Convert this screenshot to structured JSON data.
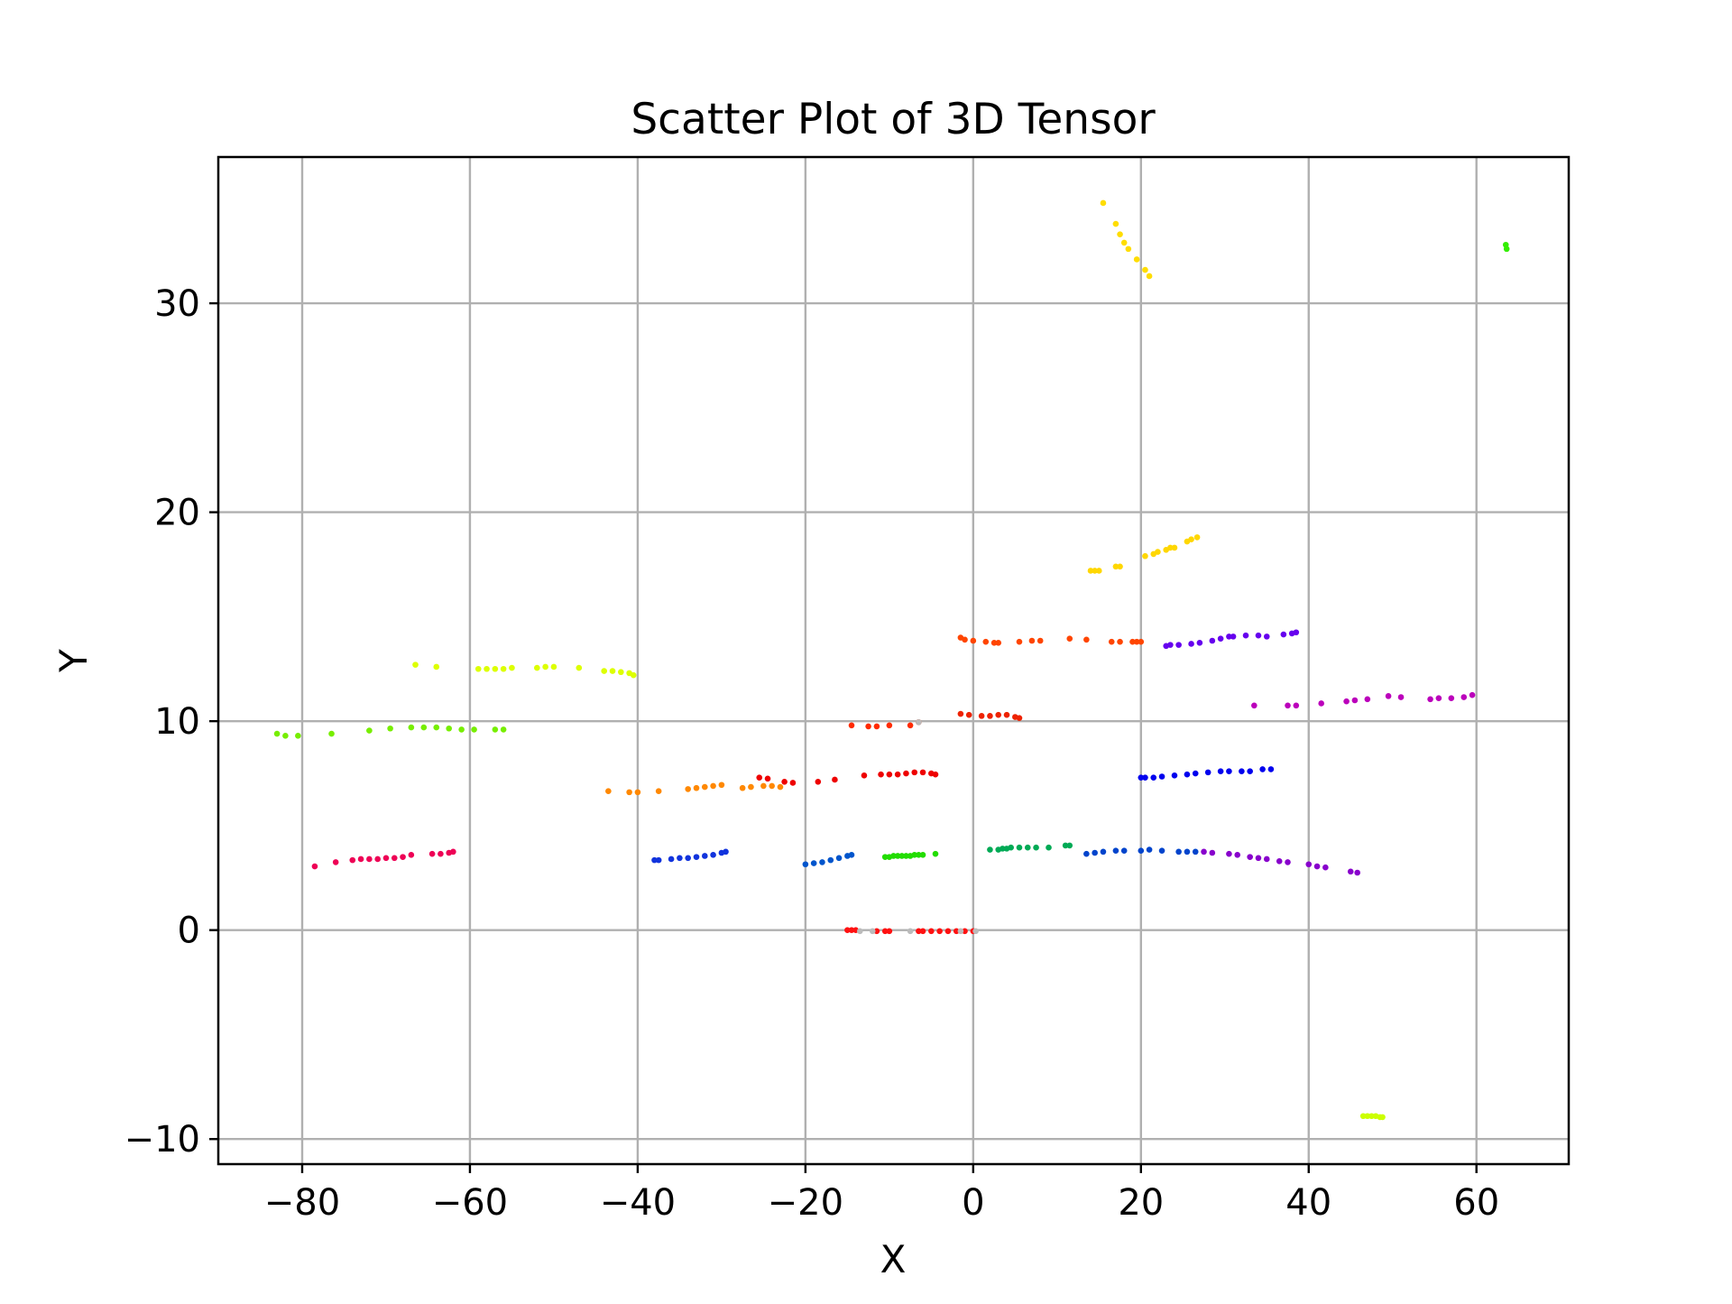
{
  "chart_data": {
    "type": "scatter",
    "title": "Scatter Plot of 3D Tensor",
    "xlabel": "X",
    "ylabel": "Y",
    "xlim": [
      -90,
      71
    ],
    "ylim": [
      -11.2,
      37
    ],
    "grid": true,
    "legend": "none",
    "x_ticks": [
      -80,
      -60,
      -40,
      -20,
      0,
      20,
      40,
      60
    ],
    "y_ticks": [
      -10,
      0,
      10,
      20,
      30
    ],
    "x_tick_labels": [
      "−80",
      "−60",
      "−40",
      "−20",
      "0",
      "20",
      "40",
      "60"
    ],
    "y_tick_labels": [
      "−10",
      "0",
      "10",
      "20",
      "30"
    ],
    "series": [
      {
        "color": "#ffdd00",
        "points": [
          [
            15.5,
            34.8
          ],
          [
            17,
            33.8
          ],
          [
            17.5,
            33.3
          ],
          [
            18,
            32.9
          ],
          [
            18.5,
            32.6
          ],
          [
            19.5,
            32.1
          ],
          [
            20.5,
            31.6
          ],
          [
            21,
            31.3
          ]
        ]
      },
      {
        "color": "#33ee00",
        "points": [
          [
            63.5,
            32.8
          ],
          [
            63.6,
            32.6
          ]
        ]
      },
      {
        "color": "#ffd700",
        "points": [
          [
            14,
            17.2
          ],
          [
            14.5,
            17.2
          ],
          [
            15,
            17.2
          ],
          [
            17,
            17.4
          ],
          [
            17.5,
            17.4
          ],
          [
            20.5,
            17.9
          ],
          [
            21.5,
            18
          ],
          [
            22,
            18.1
          ],
          [
            23,
            18.2
          ],
          [
            23.5,
            18.3
          ],
          [
            24,
            18.3
          ],
          [
            25.5,
            18.6
          ],
          [
            26,
            18.7
          ],
          [
            26.7,
            18.8
          ]
        ]
      },
      {
        "color": "#ff4500",
        "points": [
          [
            -1.5,
            14
          ],
          [
            -1,
            13.9
          ],
          [
            0,
            13.85
          ],
          [
            1.5,
            13.8
          ],
          [
            2.5,
            13.75
          ],
          [
            3,
            13.75
          ],
          [
            5.5,
            13.8
          ],
          [
            7,
            13.85
          ],
          [
            8,
            13.85
          ],
          [
            11.5,
            13.95
          ],
          [
            13.5,
            13.9
          ],
          [
            16.5,
            13.8
          ],
          [
            17.5,
            13.8
          ],
          [
            19,
            13.8
          ],
          [
            19.5,
            13.8
          ],
          [
            20,
            13.8
          ]
        ]
      },
      {
        "color": "#6600ee",
        "points": [
          [
            23,
            13.6
          ],
          [
            23.5,
            13.65
          ],
          [
            24.5,
            13.65
          ],
          [
            26,
            13.7
          ],
          [
            27,
            13.75
          ],
          [
            28.5,
            13.85
          ],
          [
            29.5,
            13.95
          ],
          [
            30.5,
            14.05
          ],
          [
            31,
            14.05
          ],
          [
            32.5,
            14.1
          ],
          [
            34,
            14.1
          ],
          [
            35,
            14.05
          ],
          [
            37,
            14.15
          ],
          [
            38,
            14.2
          ],
          [
            38.5,
            14.25
          ]
        ]
      },
      {
        "color": "#ddff00",
        "points": [
          [
            -66.5,
            12.7
          ],
          [
            -64,
            12.6
          ],
          [
            -59,
            12.5
          ],
          [
            -58,
            12.5
          ],
          [
            -57,
            12.5
          ],
          [
            -56,
            12.5
          ],
          [
            -55,
            12.55
          ],
          [
            -52,
            12.55
          ],
          [
            -51,
            12.6
          ],
          [
            -50,
            12.6
          ],
          [
            -47,
            12.55
          ],
          [
            -44,
            12.4
          ],
          [
            -43,
            12.4
          ],
          [
            -42,
            12.35
          ],
          [
            -41,
            12.3
          ],
          [
            -40.5,
            12.2
          ]
        ]
      },
      {
        "color": "#bb00bb",
        "points": [
          [
            33.5,
            10.75
          ],
          [
            37.5,
            10.75
          ],
          [
            38.5,
            10.75
          ],
          [
            41.5,
            10.85
          ],
          [
            44.5,
            10.95
          ],
          [
            45.5,
            11
          ],
          [
            47,
            11.05
          ],
          [
            49.5,
            11.2
          ],
          [
            51,
            11.15
          ],
          [
            54.5,
            11.05
          ],
          [
            55.5,
            11.1
          ],
          [
            57,
            11.1
          ],
          [
            58.5,
            11.15
          ],
          [
            59.5,
            11.25
          ]
        ]
      },
      {
        "color": "#ee2200",
        "points": [
          [
            -1.5,
            10.35
          ],
          [
            -0.5,
            10.3
          ],
          [
            1,
            10.25
          ],
          [
            2,
            10.25
          ],
          [
            3,
            10.3
          ],
          [
            4,
            10.3
          ],
          [
            5,
            10.2
          ],
          [
            5.5,
            10.15
          ]
        ]
      },
      {
        "color": "#ff2a00",
        "points": [
          [
            -14.5,
            9.8
          ],
          [
            -12.5,
            9.75
          ],
          [
            -11.5,
            9.75
          ],
          [
            -10,
            9.8
          ],
          [
            -7.5,
            9.8
          ],
          [
            -6.5,
            9.95
          ]
        ]
      },
      {
        "color": "#77ee00",
        "points": [
          [
            -83,
            9.4
          ],
          [
            -82,
            9.3
          ],
          [
            -80.5,
            9.3
          ],
          [
            -76.5,
            9.4
          ],
          [
            -72,
            9.55
          ],
          [
            -69.5,
            9.65
          ],
          [
            -67,
            9.7
          ],
          [
            -65.5,
            9.7
          ],
          [
            -64,
            9.7
          ],
          [
            -62.5,
            9.65
          ],
          [
            -61,
            9.6
          ],
          [
            -59.5,
            9.6
          ],
          [
            -57,
            9.6
          ],
          [
            -56,
            9.6
          ]
        ]
      },
      {
        "color": "#ee0000",
        "points": [
          [
            -25.5,
            7.3
          ],
          [
            -24.5,
            7.25
          ],
          [
            -22.5,
            7.1
          ],
          [
            -21.5,
            7.05
          ],
          [
            -18.5,
            7.1
          ],
          [
            -16.5,
            7.2
          ],
          [
            -13,
            7.4
          ],
          [
            -11,
            7.45
          ],
          [
            -10,
            7.45
          ],
          [
            -9,
            7.45
          ],
          [
            -8,
            7.5
          ],
          [
            -7,
            7.55
          ],
          [
            -6,
            7.55
          ],
          [
            -5,
            7.5
          ],
          [
            -4.5,
            7.45
          ]
        ]
      },
      {
        "color": "#0000ee",
        "points": [
          [
            20,
            7.3
          ],
          [
            20.5,
            7.3
          ],
          [
            21.5,
            7.3
          ],
          [
            22.5,
            7.35
          ],
          [
            24,
            7.4
          ],
          [
            25.5,
            7.45
          ],
          [
            26.5,
            7.5
          ],
          [
            28,
            7.55
          ],
          [
            29.5,
            7.6
          ],
          [
            30.5,
            7.6
          ],
          [
            32,
            7.6
          ],
          [
            33,
            7.6
          ],
          [
            34.5,
            7.7
          ],
          [
            35.5,
            7.7
          ]
        ]
      },
      {
        "color": "#ff8800",
        "points": [
          [
            -43.5,
            6.65
          ],
          [
            -41,
            6.6
          ],
          [
            -40,
            6.6
          ],
          [
            -37.5,
            6.65
          ],
          [
            -34,
            6.75
          ],
          [
            -33,
            6.8
          ],
          [
            -32,
            6.85
          ],
          [
            -31,
            6.9
          ],
          [
            -30,
            6.95
          ],
          [
            -27.5,
            6.8
          ],
          [
            -26.5,
            6.85
          ],
          [
            -25,
            6.9
          ],
          [
            -24,
            6.9
          ],
          [
            -23,
            6.85
          ]
        ]
      },
      {
        "color": "#1133dd",
        "points": [
          [
            -38,
            3.35
          ],
          [
            -37.5,
            3.35
          ],
          [
            -36,
            3.4
          ],
          [
            -35,
            3.45
          ],
          [
            -34,
            3.45
          ],
          [
            -33,
            3.5
          ],
          [
            -32,
            3.55
          ],
          [
            -31,
            3.6
          ],
          [
            -30,
            3.7
          ],
          [
            -29.5,
            3.75
          ]
        ]
      },
      {
        "color": "#0055cc",
        "points": [
          [
            -20,
            3.15
          ],
          [
            -19,
            3.2
          ],
          [
            -18,
            3.25
          ],
          [
            -17,
            3.35
          ],
          [
            -16,
            3.45
          ],
          [
            -15,
            3.55
          ],
          [
            -14.5,
            3.6
          ]
        ]
      },
      {
        "color": "#22dd00",
        "points": [
          [
            -10.5,
            3.5
          ],
          [
            -10,
            3.5
          ],
          [
            -9.5,
            3.55
          ],
          [
            -9,
            3.55
          ],
          [
            -8.5,
            3.55
          ],
          [
            -8,
            3.55
          ],
          [
            -7.5,
            3.55
          ],
          [
            -7,
            3.6
          ],
          [
            -6.5,
            3.6
          ],
          [
            -6,
            3.6
          ],
          [
            -4.5,
            3.65
          ]
        ]
      },
      {
        "color": "#00aa55",
        "points": [
          [
            2,
            3.85
          ],
          [
            3,
            3.85
          ],
          [
            3.5,
            3.9
          ],
          [
            4,
            3.9
          ],
          [
            4.5,
            3.95
          ],
          [
            5.5,
            3.95
          ],
          [
            6.5,
            3.95
          ],
          [
            7.5,
            3.95
          ],
          [
            9,
            3.95
          ],
          [
            11,
            4.05
          ],
          [
            11.5,
            4.05
          ]
        ]
      },
      {
        "color": "#0044cc",
        "points": [
          [
            13.5,
            3.65
          ],
          [
            14.5,
            3.7
          ],
          [
            15.5,
            3.75
          ],
          [
            17,
            3.8
          ],
          [
            18,
            3.8
          ],
          [
            20,
            3.8
          ],
          [
            21,
            3.85
          ],
          [
            22.5,
            3.8
          ],
          [
            24.5,
            3.75
          ],
          [
            25.5,
            3.75
          ],
          [
            26.5,
            3.75
          ]
        ]
      },
      {
        "color": "#8800cc",
        "points": [
          [
            27.5,
            3.75
          ],
          [
            28.5,
            3.7
          ],
          [
            30.5,
            3.65
          ],
          [
            31.5,
            3.6
          ],
          [
            33,
            3.5
          ],
          [
            34,
            3.45
          ],
          [
            35,
            3.4
          ],
          [
            36.5,
            3.3
          ],
          [
            37.5,
            3.25
          ],
          [
            40,
            3.15
          ],
          [
            41,
            3.05
          ],
          [
            42,
            3
          ],
          [
            45,
            2.8
          ],
          [
            45.8,
            2.75
          ]
        ]
      },
      {
        "color": "#ee0055",
        "points": [
          [
            -78.5,
            3.05
          ],
          [
            -76,
            3.25
          ],
          [
            -74,
            3.35
          ],
          [
            -73,
            3.4
          ],
          [
            -72,
            3.4
          ],
          [
            -71,
            3.4
          ],
          [
            -70,
            3.45
          ],
          [
            -69,
            3.45
          ],
          [
            -68,
            3.5
          ],
          [
            -67,
            3.6
          ],
          [
            -64.5,
            3.65
          ],
          [
            -63.5,
            3.65
          ],
          [
            -62.5,
            3.7
          ],
          [
            -62,
            3.75
          ]
        ]
      },
      {
        "color": "#ff1111",
        "points": [
          [
            -15,
            0
          ],
          [
            -14.5,
            0
          ],
          [
            -14,
            0
          ],
          [
            -11.5,
            -0.05
          ],
          [
            -10.5,
            -0.05
          ],
          [
            -10,
            -0.05
          ],
          [
            -6.5,
            -0.05
          ],
          [
            -6,
            -0.05
          ],
          [
            -5,
            -0.05
          ],
          [
            -4,
            -0.05
          ],
          [
            -3,
            -0.05
          ],
          [
            -2,
            -0.05
          ],
          [
            -1,
            -0.05
          ],
          [
            0,
            -0.05
          ]
        ]
      },
      {
        "color": "#bbbbbb",
        "points": [
          [
            -13.5,
            -0.05
          ],
          [
            -12,
            -0.05
          ],
          [
            -7.5,
            -0.05
          ],
          [
            -1.5,
            -0.05
          ],
          [
            0.3,
            -0.05
          ],
          [
            -6.5,
            9.95
          ]
        ]
      },
      {
        "color": "#ccff00",
        "points": [
          [
            46.5,
            -8.9
          ],
          [
            47,
            -8.9
          ],
          [
            47.5,
            -8.9
          ],
          [
            48,
            -8.9
          ],
          [
            48.5,
            -8.95
          ],
          [
            48.8,
            -8.95
          ]
        ]
      }
    ]
  }
}
